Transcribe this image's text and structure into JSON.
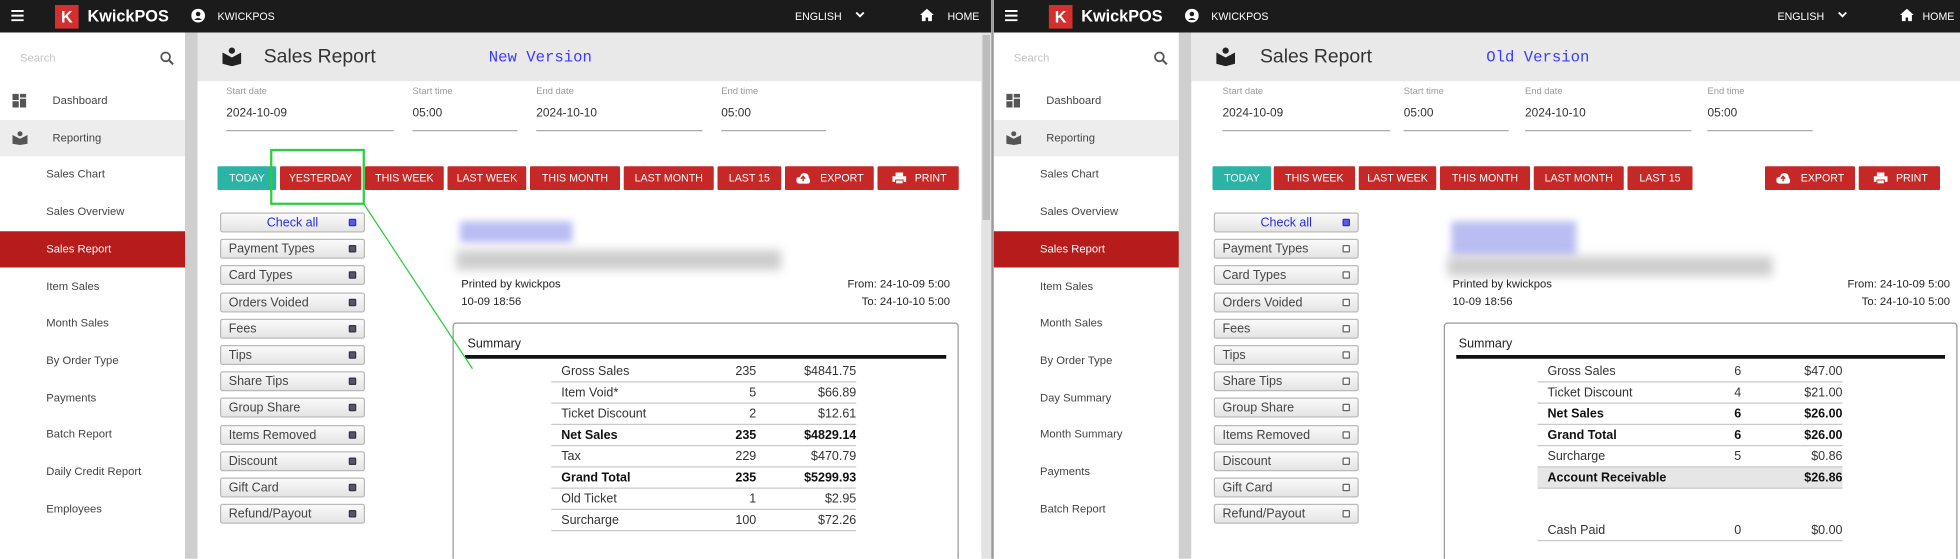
{
  "panels": [
    {
      "brand": "KwickPOS",
      "user": "KWICKPOS",
      "language": "ENGLISH",
      "home": "HOME",
      "search": "Search",
      "menu": [
        {
          "label": "Dashboard",
          "state": "top"
        },
        {
          "label": "Reporting",
          "state": "parent"
        },
        {
          "label": "Sales Chart",
          "state": "sub"
        },
        {
          "label": "Sales Overview",
          "state": "sub"
        },
        {
          "label": "Sales Report",
          "state": "active"
        },
        {
          "label": "Item Sales",
          "state": "sub"
        },
        {
          "label": "Month Sales",
          "state": "sub"
        },
        {
          "label": "By Order Type",
          "state": "sub"
        },
        {
          "label": "Payments",
          "state": "sub"
        },
        {
          "label": "Batch Report",
          "state": "sub"
        },
        {
          "label": "Daily Credit Report",
          "state": "sub"
        },
        {
          "label": "Employees",
          "state": "sub"
        }
      ],
      "title": "Sales Report",
      "version": "New Version",
      "fields": [
        {
          "label": "Start date",
          "value": "2024-10-09"
        },
        {
          "label": "Start time",
          "value": "05:00"
        },
        {
          "label": "End date",
          "value": "2024-10-10"
        },
        {
          "label": "End time",
          "value": "05:00"
        }
      ],
      "buttons": [
        {
          "label": "TODAY",
          "style": "teal"
        },
        {
          "label": "YESTERDAY",
          "style": "red"
        },
        {
          "label": "THIS WEEK",
          "style": "red"
        },
        {
          "label": "LAST WEEK",
          "style": "red"
        },
        {
          "label": "THIS MONTH",
          "style": "red"
        },
        {
          "label": "LAST MONTH",
          "style": "red"
        },
        {
          "label": "LAST 15",
          "style": "red"
        },
        {
          "label": "EXPORT",
          "style": "export"
        },
        {
          "label": "PRINT",
          "style": "print"
        }
      ],
      "checks": [
        {
          "label": "Check all",
          "checked": true
        },
        {
          "label": "Payment Types",
          "checked": true
        },
        {
          "label": "Card Types",
          "checked": true
        },
        {
          "label": "Orders Voided",
          "checked": true
        },
        {
          "label": "Fees",
          "checked": true
        },
        {
          "label": "Tips",
          "checked": true
        },
        {
          "label": "Share Tips",
          "checked": true
        },
        {
          "label": "Group Share",
          "checked": true
        },
        {
          "label": "Items Removed",
          "checked": true
        },
        {
          "label": "Discount",
          "checked": true
        },
        {
          "label": "Gift Card",
          "checked": true
        },
        {
          "label": "Refund/Payout",
          "checked": true
        }
      ],
      "printed_by": "Printed by kwickpos",
      "printed_at": "10-09 18:56",
      "from": "From: 24-10-09 5:00",
      "to": "To: 24-10-10 5:00",
      "summary_title": "Summary",
      "summary_rows": [
        {
          "label": "Gross Sales",
          "count": "235",
          "amount": "$4841.75",
          "bold": false
        },
        {
          "label": "Item Void*",
          "count": "5",
          "amount": "$66.89",
          "bold": false
        },
        {
          "label": "Ticket Discount",
          "count": "2",
          "amount": "$12.61",
          "bold": false
        },
        {
          "label": "Net Sales",
          "count": "235",
          "amount": "$4829.14",
          "bold": true
        },
        {
          "label": "Tax",
          "count": "229",
          "amount": "$470.79",
          "bold": false
        },
        {
          "label": "Grand Total",
          "count": "235",
          "amount": "$5299.93",
          "bold": true
        },
        {
          "label": "Old Ticket",
          "count": "1",
          "amount": "$2.95",
          "bold": false
        },
        {
          "label": "Surcharge",
          "count": "100",
          "amount": "$72.26",
          "bold": false
        }
      ],
      "payment_rows": []
    },
    {
      "brand": "KwickPOS",
      "user": "KWICKPOS",
      "language": "ENGLISH",
      "home": "HOME",
      "search": "Search",
      "menu": [
        {
          "label": "Dashboard",
          "state": "top"
        },
        {
          "label": "Reporting",
          "state": "parent"
        },
        {
          "label": "Sales Chart",
          "state": "sub"
        },
        {
          "label": "Sales Overview",
          "state": "sub"
        },
        {
          "label": "Sales Report",
          "state": "active"
        },
        {
          "label": "Item Sales",
          "state": "sub"
        },
        {
          "label": "Month Sales",
          "state": "sub"
        },
        {
          "label": "By Order Type",
          "state": "sub"
        },
        {
          "label": "Day Summary",
          "state": "sub"
        },
        {
          "label": "Month Summary",
          "state": "sub"
        },
        {
          "label": "Payments",
          "state": "sub"
        },
        {
          "label": "Batch Report",
          "state": "sub"
        }
      ],
      "title": "Sales Report",
      "version": "Old Version",
      "fields": [
        {
          "label": "Start date",
          "value": "2024-10-09"
        },
        {
          "label": "Start time",
          "value": "05:00"
        },
        {
          "label": "End date",
          "value": "2024-10-10"
        },
        {
          "label": "End time",
          "value": "05:00"
        }
      ],
      "buttons": [
        {
          "label": "TODAY",
          "style": "teal"
        },
        {
          "label": "THIS WEEK",
          "style": "red"
        },
        {
          "label": "LAST WEEK",
          "style": "red"
        },
        {
          "label": "THIS MONTH",
          "style": "red"
        },
        {
          "label": "LAST MONTH",
          "style": "red"
        },
        {
          "label": "LAST 15",
          "style": "red"
        },
        {
          "label": "EXPORT",
          "style": "export"
        },
        {
          "label": "PRINT",
          "style": "print"
        }
      ],
      "checks": [
        {
          "label": "Check all",
          "checked": true
        },
        {
          "label": "Payment Types",
          "checked": false
        },
        {
          "label": "Card Types",
          "checked": false
        },
        {
          "label": "Orders Voided",
          "checked": false
        },
        {
          "label": "Fees",
          "checked": false
        },
        {
          "label": "Tips",
          "checked": false
        },
        {
          "label": "Share Tips",
          "checked": false
        },
        {
          "label": "Group Share",
          "checked": false
        },
        {
          "label": "Items Removed",
          "checked": false
        },
        {
          "label": "Discount",
          "checked": false
        },
        {
          "label": "Gift Card",
          "checked": false
        },
        {
          "label": "Refund/Payout",
          "checked": false
        }
      ],
      "printed_by": "Printed by kwickpos",
      "printed_at": "10-09 18:56",
      "from": "From: 24-10-09 5:00",
      "to": "To: 24-10-10 5:00",
      "summary_title": "Summary",
      "summary_rows": [
        {
          "label": "Gross Sales",
          "count": "6",
          "amount": "$47.00",
          "bold": false
        },
        {
          "label": "Ticket Discount",
          "count": "4",
          "amount": "$21.00",
          "bold": false
        },
        {
          "label": "Net Sales",
          "count": "6",
          "amount": "$26.00",
          "bold": true
        },
        {
          "label": "Grand Total",
          "count": "6",
          "amount": "$26.00",
          "bold": true
        },
        {
          "label": "Surcharge",
          "count": "5",
          "amount": "$0.86",
          "bold": false
        },
        {
          "label": "Account Receivable",
          "count": null,
          "amount": "$26.86",
          "bold": true,
          "shaded": true
        }
      ],
      "payment_rows": [
        {
          "label": "Cash Paid",
          "count": "0",
          "amount": "$0.00",
          "bold": false
        }
      ]
    }
  ]
}
